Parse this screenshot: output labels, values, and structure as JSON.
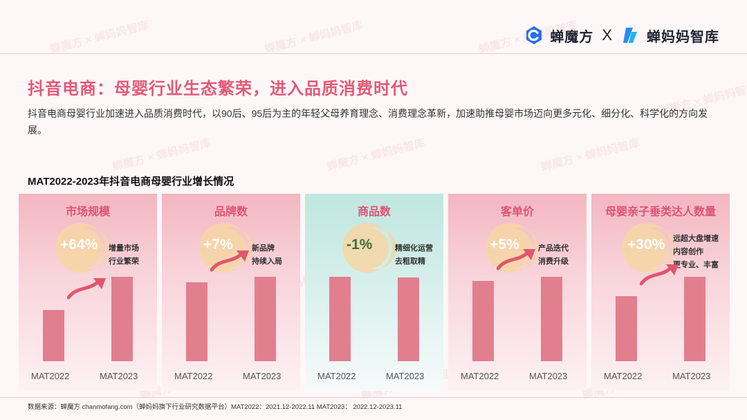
{
  "brand": {
    "name_left": "蝉魔方",
    "separator": "X",
    "name_right": "蝉妈妈智库"
  },
  "title": "抖音电商：母婴行业生态繁荣，进入品质消费时代",
  "intro": "抖音电商母婴行业加速进入品质消费时代，以90后、95后为主的年轻父母养育理念、消费理念革新，加速助推母婴市场迈向更多元化、细分化、科学化的方向发展。",
  "section_title": "MAT2022-2023年抖音电商母婴行业增长情况",
  "colors": {
    "accent": "#e25a78",
    "bar": "#e17f8f",
    "panel_pink": "#f3b6c1",
    "panel_teal": "#bfe6df",
    "moon": "#f6d6a3",
    "arrow": "#e0566f"
  },
  "chart_data": [
    {
      "type": "bar",
      "title": "市场规模",
      "growth": "+64%",
      "note": [
        "增量市场",
        "行业繁荣"
      ],
      "categories": [
        "MAT2022",
        "MAT2023"
      ],
      "values": [
        0.61,
        1.0
      ]
    },
    {
      "type": "bar",
      "title": "品牌数",
      "growth": "+7%",
      "note": [
        "新品牌",
        "持续入局"
      ],
      "categories": [
        "MAT2022",
        "MAT2023"
      ],
      "values": [
        0.934,
        1.0
      ]
    },
    {
      "type": "bar",
      "title": "商品数",
      "growth": "-1%",
      "note": [
        "精细化运营",
        "去粗取精"
      ],
      "categories": [
        "MAT2022",
        "MAT2023"
      ],
      "values": [
        1.0,
        0.99
      ]
    },
    {
      "type": "bar",
      "title": "客单价",
      "growth": "+5%",
      "note": [
        "产品迭代",
        "消费升级"
      ],
      "categories": [
        "MAT2022",
        "MAT2023"
      ],
      "values": [
        0.952,
        1.0
      ]
    },
    {
      "type": "bar",
      "title": "母婴亲子垂类达人数量",
      "growth": "+30%",
      "note": [
        "远超大盘增速",
        "内容创作",
        "更专业、丰富"
      ],
      "categories": [
        "MAT2022",
        "MAT2023"
      ],
      "values": [
        0.77,
        1.0
      ]
    }
  ],
  "source": "数据来源：蝉魔方 chanmofang.com（蝉妈妈旗下行业研究数据平台）MAT2022：2021.12-2022.11 MAT2023： 2022.12-2023.11",
  "watermark": "蝉魔方 × 蝉妈妈智库"
}
